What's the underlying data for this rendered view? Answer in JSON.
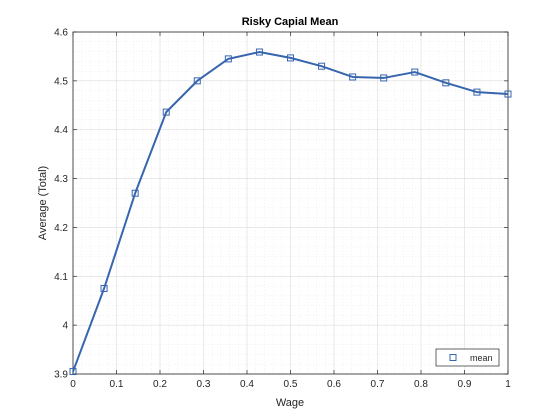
{
  "chart_data": {
    "type": "line",
    "title": "Risky Capial Mean",
    "xlabel": "Wage",
    "ylabel": "Average (Total)",
    "xlim": [
      0,
      1
    ],
    "ylim": [
      3.9,
      4.6
    ],
    "x_ticks": [
      0,
      0.1,
      0.2,
      0.3,
      0.4,
      0.5,
      0.6,
      0.7,
      0.8,
      0.9,
      1
    ],
    "x_tick_labels": [
      "0",
      "0.1",
      "0.2",
      "0.3",
      "0.4",
      "0.5",
      "0.6",
      "0.7",
      "0.8",
      "0.9",
      "1"
    ],
    "y_ticks": [
      3.9,
      4.0,
      4.1,
      4.2,
      4.3,
      4.4,
      4.5,
      4.6
    ],
    "y_tick_labels": [
      "3.9",
      "4",
      "4.1",
      "4.2",
      "4.3",
      "4.4",
      "4.5",
      "4.6"
    ],
    "grid": true,
    "minor_grid": true,
    "legend_position": "bottom-right",
    "series": [
      {
        "name": "mean",
        "color": "#3765ae",
        "marker": "square",
        "x": [
          0,
          0.0714,
          0.1429,
          0.2143,
          0.2857,
          0.3571,
          0.4286,
          0.5,
          0.5714,
          0.6429,
          0.7143,
          0.7857,
          0.8571,
          0.9286,
          1
        ],
        "y": [
          3.905,
          4.075,
          4.27,
          4.436,
          4.5,
          4.545,
          4.559,
          4.547,
          4.53,
          4.508,
          4.506,
          4.518,
          4.496,
          4.477,
          4.473
        ]
      }
    ]
  }
}
